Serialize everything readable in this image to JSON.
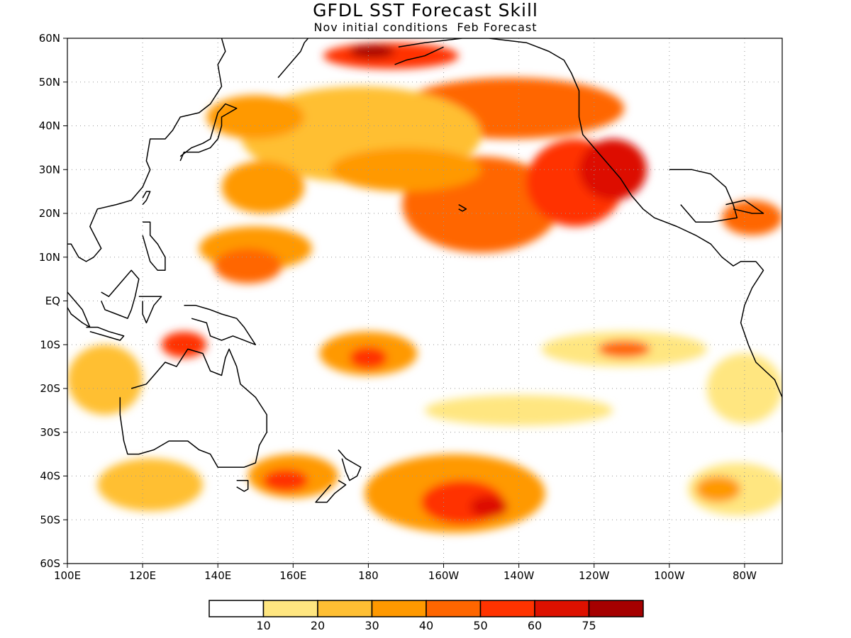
{
  "title": "GFDL SST Forecast Skill",
  "subtitle": "Nov initial conditions  Feb Forecast",
  "map": {
    "lon_range": [
      100,
      290
    ],
    "lat_range": [
      -60,
      60
    ],
    "lat_ticks": [
      "60N",
      "50N",
      "40N",
      "30N",
      "20N",
      "10N",
      "EQ",
      "10S",
      "20S",
      "30S",
      "40S",
      "50S",
      "60S"
    ],
    "lon_ticks": [
      "100E",
      "120E",
      "140E",
      "160E",
      "180",
      "160W",
      "140W",
      "120W",
      "100W",
      "80W"
    ],
    "gridlines": "dotted"
  },
  "colorbar": {
    "labels": [
      "10",
      "20",
      "30",
      "40",
      "50",
      "60",
      "75"
    ],
    "colors": [
      "#ffffff",
      "#ffe680",
      "#ffbf33",
      "#ff9900",
      "#ff6600",
      "#ff3300",
      "#dd1100",
      "#a50000"
    ]
  },
  "skill_regions": [
    {
      "lon": 210,
      "lat": 22,
      "w": 42,
      "h": 22,
      "level": 4
    },
    {
      "lon": 235,
      "lat": 27,
      "w": 26,
      "h": 20,
      "level": 5
    },
    {
      "lon": 245,
      "lat": 30,
      "w": 18,
      "h": 14,
      "level": 6
    },
    {
      "lon": 218,
      "lat": 44,
      "w": 60,
      "h": 14,
      "level": 4
    },
    {
      "lon": 186,
      "lat": 56,
      "w": 36,
      "h": 6,
      "level": 5
    },
    {
      "lon": 181,
      "lat": 57,
      "w": 12,
      "h": 3,
      "level": 7
    },
    {
      "lon": 178,
      "lat": 38,
      "w": 64,
      "h": 22,
      "level": 2
    },
    {
      "lon": 190,
      "lat": 30,
      "w": 40,
      "h": 10,
      "level": 3
    },
    {
      "lon": 150,
      "lat": 12,
      "w": 30,
      "h": 10,
      "level": 3
    },
    {
      "lon": 148,
      "lat": 8,
      "w": 18,
      "h": 8,
      "level": 4
    },
    {
      "lon": 152,
      "lat": 26,
      "w": 22,
      "h": 12,
      "level": 3
    },
    {
      "lon": 150,
      "lat": 42,
      "w": 26,
      "h": 10,
      "level": 3
    },
    {
      "lon": 131,
      "lat": -10,
      "w": 12,
      "h": 6,
      "level": 5
    },
    {
      "lon": 180,
      "lat": -12,
      "w": 26,
      "h": 10,
      "level": 3
    },
    {
      "lon": 180,
      "lat": -13,
      "w": 10,
      "h": 5,
      "level": 5
    },
    {
      "lon": 110,
      "lat": -18,
      "w": 20,
      "h": 16,
      "level": 2
    },
    {
      "lon": 122,
      "lat": -42,
      "w": 28,
      "h": 12,
      "level": 2
    },
    {
      "lon": 160,
      "lat": -40,
      "w": 24,
      "h": 10,
      "level": 3
    },
    {
      "lon": 158,
      "lat": -41,
      "w": 12,
      "h": 5,
      "level": 5
    },
    {
      "lon": 203,
      "lat": -44,
      "w": 48,
      "h": 18,
      "level": 3
    },
    {
      "lon": 205,
      "lat": -46,
      "w": 22,
      "h": 10,
      "level": 5
    },
    {
      "lon": 212,
      "lat": -47,
      "w": 10,
      "h": 5,
      "level": 6
    },
    {
      "lon": 248,
      "lat": -11,
      "w": 44,
      "h": 8,
      "level": 1
    },
    {
      "lon": 248,
      "lat": -11,
      "w": 14,
      "h": 4,
      "level": 4
    },
    {
      "lon": 220,
      "lat": -25,
      "w": 50,
      "h": 7,
      "level": 1
    },
    {
      "lon": 278,
      "lat": -43,
      "w": 26,
      "h": 12,
      "level": 1
    },
    {
      "lon": 273,
      "lat": -43,
      "w": 12,
      "h": 6,
      "level": 3
    },
    {
      "lon": 280,
      "lat": -20,
      "w": 20,
      "h": 16,
      "level": 1
    },
    {
      "lon": 282,
      "lat": 19,
      "w": 16,
      "h": 8,
      "level": 4
    }
  ],
  "coastlines": [
    {
      "name": "north-america",
      "points": [
        [
          188,
          58
        ],
        [
          195,
          59
        ],
        [
          205,
          60
        ],
        [
          212,
          60
        ],
        [
          222,
          59
        ],
        [
          228,
          57
        ],
        [
          232,
          55
        ],
        [
          234,
          52
        ],
        [
          236,
          48
        ],
        [
          236,
          42
        ],
        [
          237,
          38
        ],
        [
          241,
          34
        ],
        [
          244,
          31
        ],
        [
          247,
          28
        ],
        [
          250,
          24
        ],
        [
          253,
          21
        ],
        [
          256,
          19
        ],
        [
          262,
          17
        ],
        [
          267,
          15
        ],
        [
          271,
          13
        ],
        [
          274,
          10
        ],
        [
          277,
          8
        ],
        [
          279,
          9
        ],
        [
          283,
          9
        ]
      ]
    },
    {
      "name": "mexico-gulf",
      "points": [
        [
          260,
          30
        ],
        [
          266,
          30
        ],
        [
          271,
          29
        ],
        [
          275,
          26
        ],
        [
          277,
          22
        ],
        [
          278,
          19
        ],
        [
          271,
          18
        ],
        [
          267,
          18
        ],
        [
          263,
          22
        ]
      ]
    },
    {
      "name": "south-america",
      "points": [
        [
          283,
          9
        ],
        [
          285,
          7
        ],
        [
          282,
          3
        ],
        [
          280,
          -1
        ],
        [
          279,
          -5
        ],
        [
          281,
          -10
        ],
        [
          283,
          -14
        ],
        [
          288,
          -18
        ],
        [
          290,
          -22
        ],
        [
          290,
          -30
        ]
      ]
    },
    {
      "name": "asia-east",
      "points": [
        [
          141,
          60
        ],
        [
          142,
          57
        ],
        [
          140,
          54
        ],
        [
          141,
          49
        ],
        [
          138,
          45
        ],
        [
          135,
          43
        ],
        [
          130,
          42
        ],
        [
          128,
          39
        ],
        [
          126,
          37
        ],
        [
          122,
          37
        ],
        [
          121,
          32
        ],
        [
          122,
          30
        ],
        [
          120,
          26
        ],
        [
          117,
          23
        ],
        [
          113,
          22
        ],
        [
          108,
          21
        ],
        [
          106,
          17
        ],
        [
          109,
          12
        ],
        [
          107,
          10
        ],
        [
          105,
          9
        ],
        [
          103,
          10
        ],
        [
          101,
          13
        ],
        [
          100,
          13
        ]
      ]
    },
    {
      "name": "japan",
      "points": [
        [
          130,
          32
        ],
        [
          131,
          34
        ],
        [
          135,
          34
        ],
        [
          138,
          35
        ],
        [
          140,
          37
        ],
        [
          141,
          40
        ],
        [
          141,
          42
        ],
        [
          143,
          43
        ],
        [
          145,
          44
        ],
        [
          142,
          45
        ],
        [
          140,
          43
        ],
        [
          139,
          40
        ],
        [
          138,
          37
        ],
        [
          136,
          36
        ],
        [
          133,
          35
        ],
        [
          130,
          33
        ]
      ]
    },
    {
      "name": "kamchatka",
      "points": [
        [
          156,
          51
        ],
        [
          158,
          53
        ],
        [
          160,
          55
        ],
        [
          162,
          57
        ],
        [
          163,
          59
        ],
        [
          164,
          60
        ]
      ]
    },
    {
      "name": "australia",
      "points": [
        [
          114,
          -22
        ],
        [
          114,
          -26
        ],
        [
          115,
          -32
        ],
        [
          116,
          -35
        ],
        [
          119,
          -35
        ],
        [
          123,
          -34
        ],
        [
          127,
          -32
        ],
        [
          132,
          -32
        ],
        [
          135,
          -34
        ],
        [
          138,
          -35
        ],
        [
          140,
          -38
        ],
        [
          144,
          -38
        ],
        [
          147,
          -38
        ],
        [
          150,
          -37
        ],
        [
          151,
          -33
        ],
        [
          153,
          -30
        ],
        [
          153,
          -26
        ],
        [
          150,
          -22
        ],
        [
          146,
          -19
        ],
        [
          145,
          -15
        ],
        [
          143,
          -11
        ],
        [
          142,
          -13
        ],
        [
          141,
          -17
        ],
        [
          138,
          -16
        ],
        [
          136,
          -12
        ],
        [
          132,
          -11
        ],
        [
          129,
          -15
        ],
        [
          126,
          -14
        ],
        [
          123,
          -17
        ],
        [
          121,
          -19
        ],
        [
          117,
          -20
        ]
      ]
    },
    {
      "name": "new-guinea",
      "points": [
        [
          131,
          -1
        ],
        [
          134,
          -1
        ],
        [
          138,
          -2
        ],
        [
          141,
          -3
        ],
        [
          145,
          -4
        ],
        [
          147,
          -6
        ],
        [
          150,
          -10
        ],
        [
          147,
          -9
        ],
        [
          144,
          -8
        ],
        [
          141,
          -9
        ],
        [
          138,
          -8
        ],
        [
          137,
          -5
        ],
        [
          133,
          -4
        ]
      ]
    },
    {
      "name": "new-zealand-north",
      "points": [
        [
          172,
          -34
        ],
        [
          174,
          -36
        ],
        [
          176,
          -37
        ],
        [
          178,
          -38
        ],
        [
          177,
          -40
        ],
        [
          175,
          -41
        ],
        [
          174,
          -39
        ],
        [
          173,
          -36
        ]
      ]
    },
    {
      "name": "new-zealand-south",
      "points": [
        [
          172,
          -41
        ],
        [
          174,
          -42
        ],
        [
          171,
          -44
        ],
        [
          169,
          -46
        ],
        [
          166,
          -46
        ],
        [
          168,
          -44
        ],
        [
          170,
          -42
        ]
      ]
    },
    {
      "name": "tasmania",
      "points": [
        [
          145,
          -41
        ],
        [
          148,
          -41
        ],
        [
          148,
          -43
        ],
        [
          147,
          -43.5
        ],
        [
          145,
          -42.5
        ]
      ]
    },
    {
      "name": "borneo",
      "points": [
        [
          109,
          2
        ],
        [
          111,
          1
        ],
        [
          114,
          4
        ],
        [
          117,
          7
        ],
        [
          119,
          5
        ],
        [
          118,
          1
        ],
        [
          117,
          -2
        ],
        [
          116,
          -4
        ],
        [
          113,
          -3
        ],
        [
          110,
          -2
        ],
        [
          109,
          0
        ]
      ]
    },
    {
      "name": "sumatra",
      "points": [
        [
          95,
          5
        ],
        [
          98,
          4
        ],
        [
          101,
          1
        ],
        [
          104,
          -2
        ],
        [
          106,
          -6
        ],
        [
          104,
          -5
        ],
        [
          101,
          -3
        ],
        [
          99,
          0
        ],
        [
          96,
          3
        ]
      ]
    },
    {
      "name": "java",
      "points": [
        [
          105,
          -6
        ],
        [
          108,
          -6
        ],
        [
          111,
          -7
        ],
        [
          115,
          -8
        ],
        [
          114,
          -9
        ],
        [
          110,
          -8
        ],
        [
          106,
          -7
        ]
      ]
    },
    {
      "name": "sulawesi",
      "points": [
        [
          119,
          1
        ],
        [
          121,
          1
        ],
        [
          125,
          1
        ],
        [
          123,
          -1
        ],
        [
          122,
          -3
        ],
        [
          121,
          -5
        ],
        [
          120,
          -3
        ],
        [
          120,
          0
        ]
      ]
    },
    {
      "name": "philippines",
      "points": [
        [
          120,
          18
        ],
        [
          122,
          18
        ],
        [
          122,
          15
        ],
        [
          124,
          13
        ],
        [
          126,
          10
        ],
        [
          126,
          7
        ],
        [
          124,
          7
        ],
        [
          122,
          9
        ],
        [
          121,
          12
        ],
        [
          120,
          15
        ]
      ]
    },
    {
      "name": "taiwan",
      "points": [
        [
          120,
          22
        ],
        [
          121,
          23
        ],
        [
          122,
          25
        ],
        [
          121,
          25
        ],
        [
          120,
          23.5
        ]
      ]
    },
    {
      "name": "hawaii",
      "points": [
        [
          204,
          22
        ],
        [
          205,
          21.5
        ],
        [
          206,
          21
        ],
        [
          205,
          20.5
        ],
        [
          204,
          21
        ]
      ]
    },
    {
      "name": "cuba",
      "points": [
        [
          275,
          22
        ],
        [
          280,
          23
        ],
        [
          285,
          20
        ],
        [
          282,
          20
        ],
        [
          277,
          21
        ]
      ]
    },
    {
      "name": "alaska-peninsula",
      "points": [
        [
          200,
          58
        ],
        [
          195,
          56
        ],
        [
          190,
          55
        ],
        [
          187,
          54
        ]
      ]
    }
  ]
}
